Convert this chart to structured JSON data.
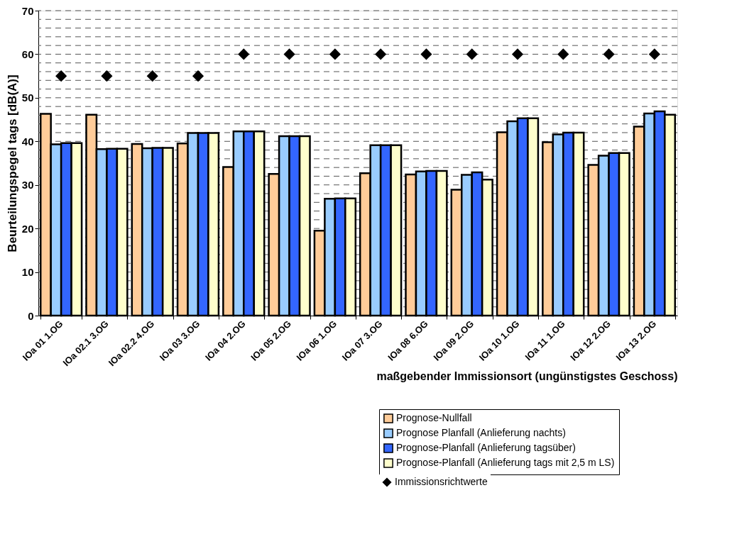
{
  "chart_data": {
    "type": "bar",
    "xlabel": "maßgebender Immissionsort (ungünstigstes Geschoss)",
    "ylabel": "Beurteilungspegel tags [dB(A)]",
    "categories": [
      "IOa 01 1.OG",
      "IOa 02.1 3.OG",
      "IOa 02.2 4.OG",
      "IOa 03 3.OG",
      "IOa 04 2.OG",
      "IOa 05 2.OG",
      "IOa 06 1.OG",
      "IOa 07 3.OG",
      "IOa 08 6.OG",
      "IOa 09 2.OG",
      "IOa 10 1.OG",
      "IOa 11 1.OG",
      "IOa 12 2.OG",
      "IOa 13 2.OG"
    ],
    "series": [
      {
        "name": "Prognose-Nullfall",
        "color": "#ffcc99",
        "values": [
          46.3,
          46.1,
          39.4,
          39.5,
          34.1,
          32.5,
          19.5,
          32.7,
          32.4,
          28.9,
          42.1,
          39.8,
          34.6,
          43.4
        ]
      },
      {
        "name": "Prognose Planfall (Anlieferung nachts)",
        "color": "#99ccff",
        "values": [
          39.3,
          38.2,
          38.4,
          41.9,
          42.3,
          41.2,
          26.8,
          39.1,
          33.1,
          32.3,
          44.6,
          41.6,
          36.7,
          46.4
        ]
      },
      {
        "name": "Prognose-Planfall (Anlieferung tagsüber)",
        "color": "#3366ff",
        "values": [
          39.6,
          38.3,
          38.5,
          41.9,
          42.3,
          41.2,
          26.9,
          39.1,
          33.2,
          32.9,
          45.3,
          42.0,
          37.3,
          46.9
        ]
      },
      {
        "name": "Prognose-Planfall (Anlieferung tags mit 2,5 m LS)",
        "color": "#ffffcc",
        "values": [
          39.6,
          38.3,
          38.5,
          41.9,
          42.3,
          41.2,
          26.9,
          39.1,
          33.2,
          31.2,
          45.3,
          42.0,
          37.3,
          46.1
        ]
      },
      {
        "name": "Immissionsrichtwerte",
        "type": "scatter",
        "color": "#000000",
        "marker": "diamond",
        "values": [
          55,
          55,
          55,
          55,
          60,
          60,
          60,
          60,
          60,
          60,
          60,
          60,
          60,
          60
        ]
      }
    ],
    "ylim": [
      0,
      70
    ],
    "yticks": [
      0,
      10,
      20,
      30,
      40,
      50,
      60,
      70
    ],
    "grid": "y",
    "legend": "bottom right"
  }
}
